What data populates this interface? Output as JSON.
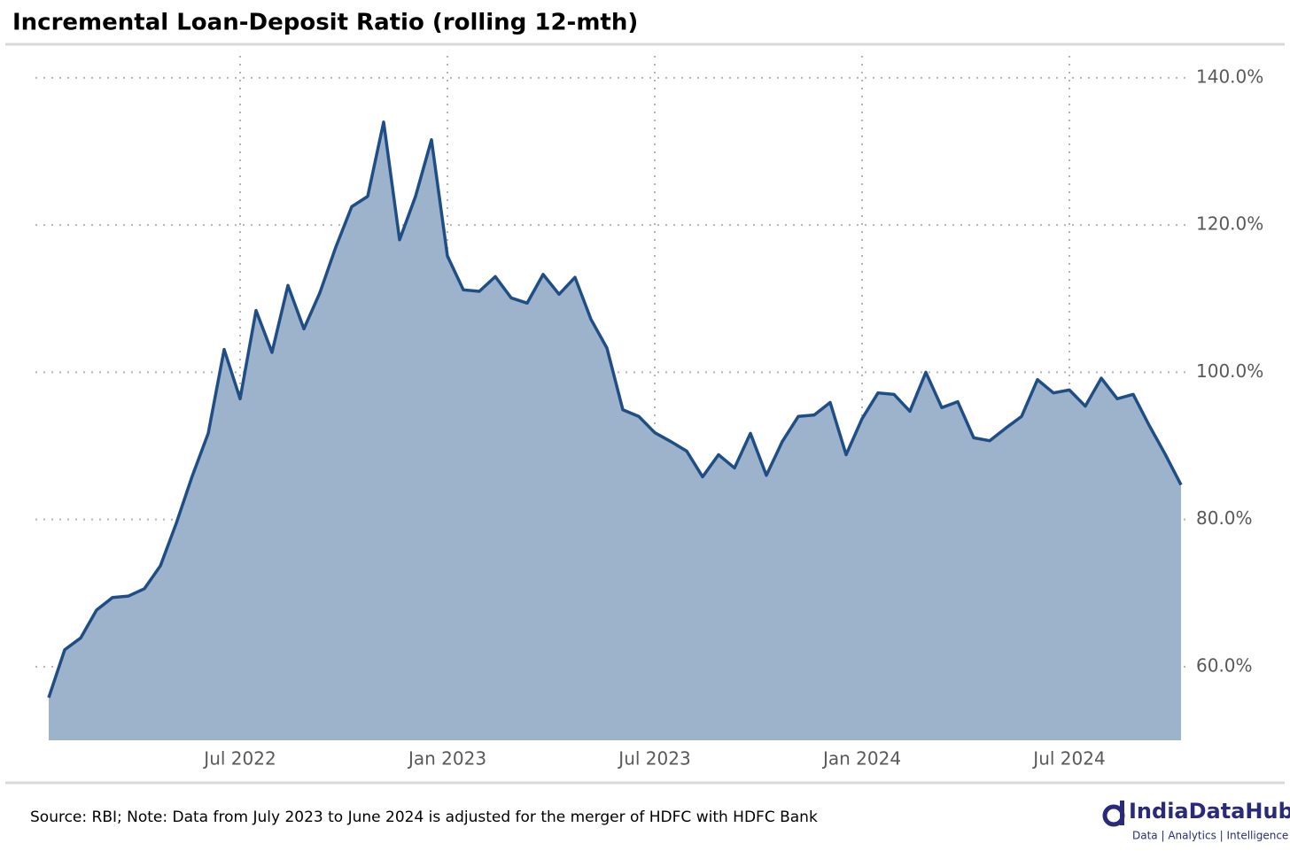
{
  "chart_data": {
    "type": "area",
    "title": "Incremental Loan-Deposit Ratio (rolling 12-mth)",
    "note": "Source: RBI; Note: Data from July 2023 to June 2024 is adjusted for the merger of HDFC with HDFC Bank",
    "brand": {
      "name": "IndiaDataHub",
      "tagline": "Data | Analytics | Intelligence"
    },
    "categories": [
      null,
      null,
      null,
      null,
      null,
      null,
      null,
      null,
      null,
      null,
      null,
      null,
      "Jul 2022",
      null,
      null,
      null,
      null,
      null,
      null,
      null,
      null,
      null,
      null,
      null,
      null,
      "Jan 2023",
      null,
      null,
      null,
      null,
      null,
      null,
      null,
      null,
      null,
      null,
      null,
      null,
      "Jul 2023",
      null,
      null,
      null,
      null,
      null,
      null,
      null,
      null,
      null,
      null,
      null,
      null,
      "Jan 2024",
      null,
      null,
      null,
      null,
      null,
      null,
      null,
      null,
      null,
      null,
      null,
      null,
      "Jul 2024",
      null,
      null,
      null,
      null,
      null,
      null,
      null
    ],
    "series": [
      {
        "name": "Incremental Loan-Deposit Ratio",
        "color": "#1f4e86",
        "fill": "#9db3cc",
        "values": [
          55.8,
          62.3,
          63.9,
          67.7,
          69.4,
          69.6,
          70.6,
          73.7,
          79.5,
          85.9,
          91.7,
          103.1,
          96.4,
          108.4,
          102.7,
          111.8,
          105.9,
          110.8,
          117.0,
          122.5,
          123.9,
          134.0,
          118.0,
          123.9,
          131.6,
          115.8,
          111.2,
          111.0,
          113.0,
          110.1,
          109.4,
          113.3,
          110.6,
          112.9,
          107.2,
          103.3,
          94.9,
          94.0,
          91.8,
          90.6,
          89.3,
          85.8,
          88.8,
          87.0,
          91.7,
          86.0,
          90.6,
          94.0,
          94.2,
          95.9,
          88.8,
          93.7,
          97.2,
          97.0,
          94.7,
          100.0,
          95.2,
          96.0,
          91.1,
          90.7,
          92.4,
          94.0,
          99.0,
          97.2,
          97.6,
          95.4,
          99.2,
          96.4,
          97.0,
          92.8,
          88.9,
          84.7
        ]
      }
    ],
    "ylim": [
      50,
      143
    ],
    "yticks": [
      {
        "value": 60,
        "label": "60.0%"
      },
      {
        "value": 80,
        "label": "80.0%"
      },
      {
        "value": 100,
        "label": "100.0%"
      },
      {
        "value": 120,
        "label": "120.0%"
      },
      {
        "value": 140,
        "label": "140.0%"
      }
    ],
    "grid": true
  }
}
